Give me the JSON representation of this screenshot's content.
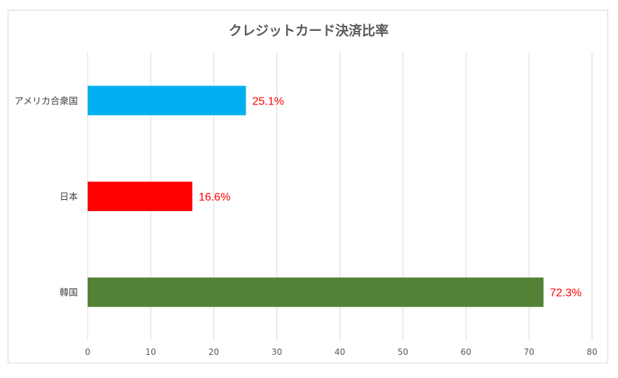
{
  "chart_data": {
    "type": "bar",
    "orientation": "horizontal",
    "title": "クレジットカード決済比率",
    "categories": [
      "アメリカ合衆国",
      "日本",
      "韓国"
    ],
    "values": [
      25.1,
      16.6,
      72.3
    ],
    "data_labels": [
      "25.1%",
      "16.6%",
      "72.3%"
    ],
    "bar_colors": [
      "#00B0F0",
      "#FF0000",
      "#538135"
    ],
    "data_label_color": "#FF0000",
    "xlim": [
      0,
      80
    ],
    "x_ticks": [
      0,
      10,
      20,
      30,
      40,
      50,
      60,
      70,
      80
    ],
    "grid": true,
    "legend": "none"
  }
}
